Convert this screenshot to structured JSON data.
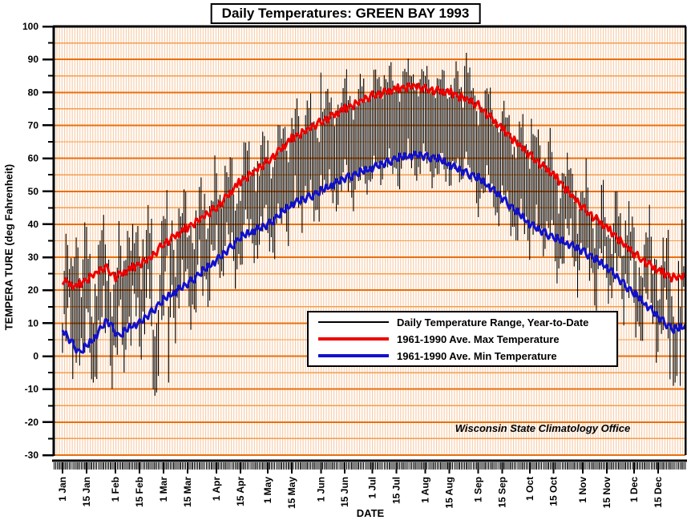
{
  "annotation": "Wisconsin State Climatology Office",
  "legend": {
    "entries": [
      {
        "label": "Daily Temperature Range, Year-to-Date",
        "color": "#000000",
        "weight": 2
      },
      {
        "label": "1961-1990 Ave. Max Temperature",
        "color": "#ee0000",
        "weight": 4
      },
      {
        "label": "1961-1990 Ave. Min Temperature",
        "color": "#1111cc",
        "weight": 4
      }
    ]
  },
  "colors": {
    "grid_major": "#e8700f",
    "grid_minor": "#f39e4e",
    "hatch": "#f8c9a2",
    "axis": "#000000",
    "range_bar": "#000000",
    "plot_background": "#ffffff"
  },
  "chart_data": {
    "type": "composite",
    "title": "Daily Temperatures: GREEN BAY 1993",
    "xlabel": "DATE",
    "ylabel": "TEMPERA TURE (deg Fahrenheit)",
    "ylim": [
      -30,
      100
    ],
    "y_major_step": 10,
    "y_minor_step": 5,
    "days_in_year": 365,
    "grid": "on",
    "legend_position": "center-right",
    "x_tick_labels": [
      "1 Jan",
      "15 Jan",
      "1 Feb",
      "15 Feb",
      "1 Mar",
      "15 Mar",
      "1 Apr",
      "15 Apr",
      "1 May",
      "15 May",
      "1 Jun",
      "15 Jun",
      "1 Jul",
      "15 Jul",
      "1 Aug",
      "15 Aug",
      "1 Sep",
      "15 Sep",
      "1 Oct",
      "15 Oct",
      "1 Nov",
      "15 Nov",
      "1 Dec",
      "15 Dec"
    ],
    "x_tick_days": [
      0,
      14,
      31,
      45,
      59,
      73,
      90,
      104,
      120,
      134,
      151,
      165,
      181,
      195,
      212,
      226,
      243,
      257,
      273,
      287,
      304,
      318,
      334,
      348
    ],
    "series": [
      {
        "name": "Daily Temperature Range, Year-to-Date",
        "type": "range-bars",
        "color": "#000000"
      },
      {
        "name": "1961-1990 Ave. Max Temperature",
        "type": "line",
        "color": "#ee0000",
        "anchor_days": [
          0,
          8,
          16,
          25,
          31,
          38,
          45,
          52,
          59,
          73,
          90,
          104,
          120,
          134,
          151,
          165,
          181,
          195,
          205,
          212,
          226,
          236,
          243,
          257,
          273,
          287,
          304,
          318,
          334,
          348,
          356,
          364
        ],
        "anchor_values": [
          23,
          21,
          24,
          27,
          24,
          26,
          28,
          30,
          34,
          39,
          45,
          53,
          59,
          66,
          71,
          75,
          79,
          81,
          82,
          81,
          80,
          78,
          76,
          69,
          61,
          55,
          45,
          39,
          31,
          26,
          24,
          24
        ]
      },
      {
        "name": "1961-1990 Ave. Min Temperature",
        "type": "line",
        "color": "#1111cc",
        "anchor_days": [
          0,
          10,
          18,
          26,
          33,
          40,
          45,
          59,
          73,
          90,
          104,
          120,
          134,
          151,
          165,
          181,
          195,
          208,
          219,
          226,
          243,
          257,
          273,
          287,
          304,
          318,
          334,
          348,
          357,
          364
        ],
        "anchor_values": [
          8,
          1,
          5,
          11,
          6,
          9,
          10,
          17,
          22,
          29,
          36,
          40,
          46,
          50,
          54,
          57,
          60,
          61,
          60,
          58,
          54,
          48,
          40,
          36,
          32,
          27,
          19,
          12,
          8,
          9
        ]
      }
    ],
    "daily_range_overrides": {
      "0": [
        1,
        10
      ],
      "7": [
        3,
        30
      ],
      "8": [
        -2,
        36
      ],
      "9": [
        2,
        33
      ],
      "17": [
        -7,
        12
      ],
      "18": [
        -8,
        10
      ],
      "22": [
        8,
        35
      ],
      "38": [
        10,
        38
      ],
      "39": [
        12,
        36
      ],
      "53": [
        -10,
        8
      ],
      "54": [
        -12,
        6
      ],
      "55": [
        -11,
        10
      ],
      "56": [
        -6,
        14
      ],
      "62": [
        -8,
        15
      ],
      "151": [
        55,
        86
      ],
      "166": [
        58,
        87
      ],
      "235": [
        60,
        88
      ],
      "236": [
        62,
        92
      ],
      "237": [
        58,
        86
      ],
      "274": [
        40,
        72
      ],
      "306": [
        30,
        60
      ],
      "355": [
        -7,
        25
      ],
      "357": [
        -9,
        12
      ],
      "358": [
        -8,
        8
      ],
      "359": [
        -6,
        10
      ],
      "361": [
        -9,
        15
      ],
      "364": [
        -9,
        33
      ]
    },
    "daily_synthesis": {
      "amp_base": 5.5,
      "amp_seasonal": 8,
      "amp_phase_day": 20,
      "weights": {
        "common": 0.85,
        "max": 0.5,
        "min": 0.6,
        "max_pad": 2.5,
        "min_pad": 2.5
      },
      "curve_jitter": 1.3,
      "noise_a": [
        0.2,
        -0.5,
        0.8,
        -0.1,
        -0.9,
        0.4,
        1.0,
        -0.3,
        -0.7,
        0.1,
        0.6,
        -1.0,
        -0.2,
        0.9,
        0.3,
        -0.6,
        0.5,
        -0.8,
        0.0,
        0.7,
        -0.4,
        1.0,
        -0.9,
        0.2,
        0.5,
        -0.2,
        -1.0,
        0.8,
        0.1,
        -0.6,
        0.4
      ],
      "noise_b": [
        0.1,
        0.35,
        0.6,
        0.85,
        0.7,
        0.25,
        -0.3,
        -0.7,
        -1.0,
        -0.8,
        -0.4,
        0.0,
        0.5,
        0.8,
        1.0,
        0.65,
        0.1,
        -0.2,
        -0.55,
        -0.9,
        -0.6,
        -0.1,
        0.4,
        0.7,
        0.9,
        0.5,
        0.05,
        -0.4,
        -0.8,
        -1.0,
        -0.7,
        -0.2,
        0.3,
        0.75,
        0.6,
        0.2,
        -0.15,
        -0.5,
        -0.85,
        -0.35,
        0.2,
        0.6,
        1.0,
        0.8,
        0.3,
        -0.2,
        -0.6
      ],
      "noise_c": [
        -0.3,
        0.5,
        -0.8,
        0.2,
        0.9,
        -0.1,
        -0.6,
        0.7,
        0.0,
        -0.9,
        0.4,
        0.8,
        -0.4,
        -1.0,
        0.3,
        0.6,
        -0.2,
        -0.7,
        1.0,
        0.1,
        -0.5,
        0.9,
        -0.3
      ]
    },
    "observed_extremes": {
      "highest_daily_max_f": 92,
      "highest_daily_max_near": "late Aug",
      "lowest_daily_min_f": -12,
      "lowest_daily_min_near": "late Feb"
    }
  }
}
